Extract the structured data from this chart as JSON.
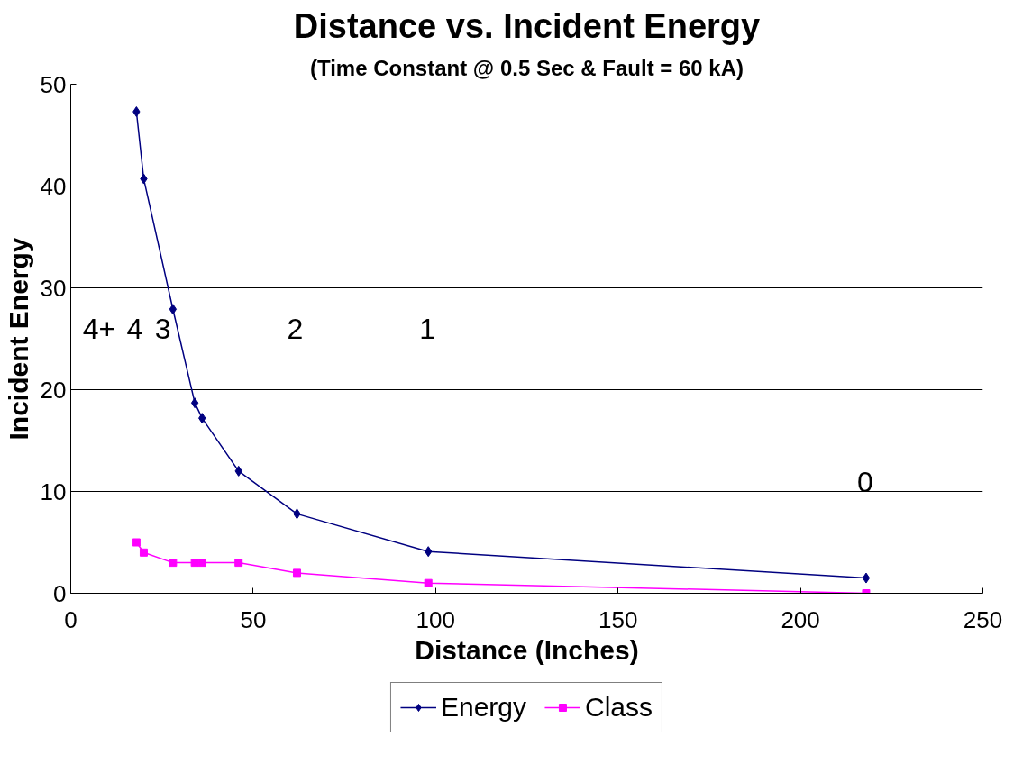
{
  "chart_data": {
    "type": "line",
    "title": "Distance vs. Incident Energy",
    "subtitle": "(Time Constant @ 0.5 Sec & Fault = 60 kA)",
    "xlabel": "Distance (Inches)",
    "ylabel": "Incident Energy",
    "x": [
      18,
      20,
      28,
      34,
      36,
      46,
      62,
      98,
      218
    ],
    "series": [
      {
        "name": "Energy",
        "color": "#000080",
        "marker": "diamond",
        "values": [
          47.3,
          40.7,
          27.9,
          18.7,
          17.2,
          12.0,
          7.8,
          4.1,
          1.5
        ]
      },
      {
        "name": "Class",
        "color": "#ff00ff",
        "marker": "square",
        "values": [
          5,
          4,
          3,
          3,
          3,
          3,
          2,
          1,
          0
        ]
      }
    ],
    "annotations": [
      "4+",
      "4",
      "3",
      "2",
      "1",
      "0"
    ],
    "xlim": [
      0,
      250
    ],
    "xticks": [
      0,
      50,
      100,
      150,
      200,
      250
    ],
    "ylim": [
      0,
      50
    ],
    "yticks": [
      0,
      10,
      20,
      30,
      40,
      50
    ],
    "grid": "y",
    "legend": "bottom",
    "line_style": "solid"
  }
}
